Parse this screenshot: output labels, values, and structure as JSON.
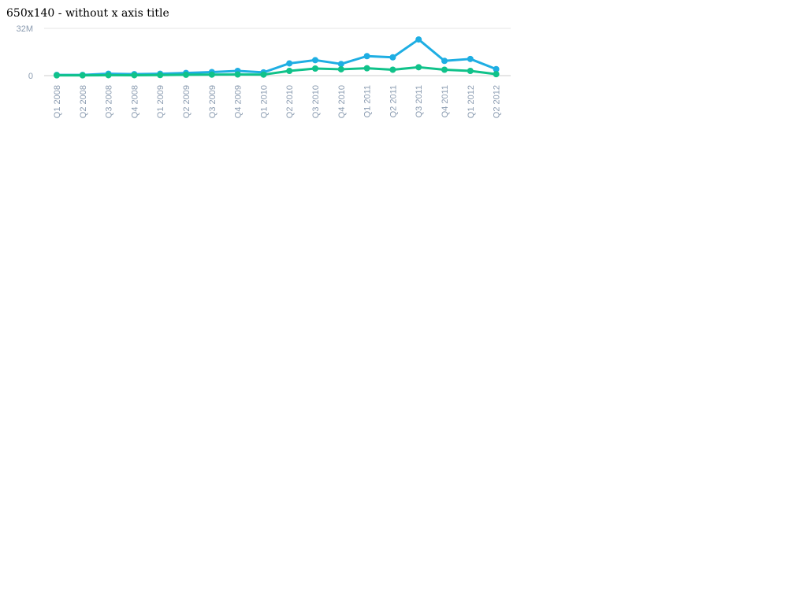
{
  "page": {
    "title": "650x140 - without x axis title"
  },
  "chart_data": {
    "type": "line",
    "title": "",
    "xlabel": "",
    "ylabel": "",
    "ylim": [
      0,
      32000000
    ],
    "y_ticks": [
      {
        "value": 0,
        "label": "0"
      },
      {
        "value": 32000000,
        "label": "32M"
      }
    ],
    "grid": true,
    "legend": "none",
    "categories": [
      "Q1 2008",
      "Q2 2008",
      "Q3 2008",
      "Q4 2008",
      "Q1 2009",
      "Q2 2009",
      "Q3 2009",
      "Q4 2009",
      "Q1 2010",
      "Q2 2010",
      "Q3 2010",
      "Q4 2010",
      "Q1 2011",
      "Q2 2011",
      "Q3 2011",
      "Q4 2011",
      "Q1 2012",
      "Q2 2012"
    ],
    "series": [
      {
        "color": "#1eaee3",
        "values": [
          500000,
          500000,
          1300000,
          1000000,
          1300000,
          1800000,
          2400000,
          3200000,
          2200000,
          8300000,
          10500000,
          7900000,
          13200000,
          12400000,
          24500000,
          10000000,
          11300000,
          4400000
        ]
      },
      {
        "color": "#10c28a",
        "values": [
          200000,
          200000,
          300000,
          300000,
          400000,
          600000,
          700000,
          800000,
          700000,
          3200000,
          4800000,
          4300000,
          5000000,
          4000000,
          5700000,
          4000000,
          3200000,
          1000000
        ]
      }
    ],
    "colors": {
      "grid": "#e6e6e6",
      "baseline": "#cccccc",
      "tick_label": "#8a9bb0"
    }
  }
}
